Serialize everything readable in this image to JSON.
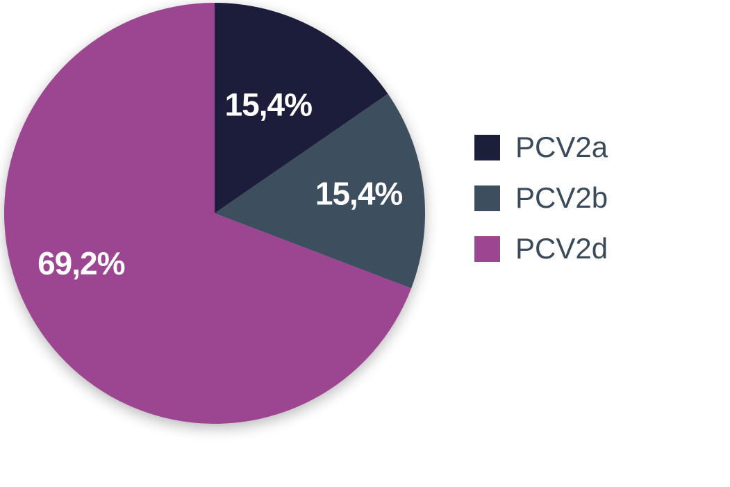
{
  "chart_data": {
    "type": "pie",
    "categories": [
      "PCV2a",
      "PCV2b",
      "PCV2d"
    ],
    "values": [
      15.4,
      15.4,
      69.2
    ],
    "labels": [
      "15,4%",
      "15,4%",
      "69,2%"
    ],
    "colors": [
      "#1b1f3a",
      "#3d4f5e",
      "#9c4590"
    ],
    "start_angle_deg": 0,
    "direction": "clockwise",
    "legend_position": "right",
    "title": ""
  },
  "legend": {
    "items": [
      {
        "label": "PCV2a",
        "color": "#1b1f3a"
      },
      {
        "label": "PCV2b",
        "color": "#3d4f5e"
      },
      {
        "label": "PCV2d",
        "color": "#9c4590"
      }
    ]
  }
}
